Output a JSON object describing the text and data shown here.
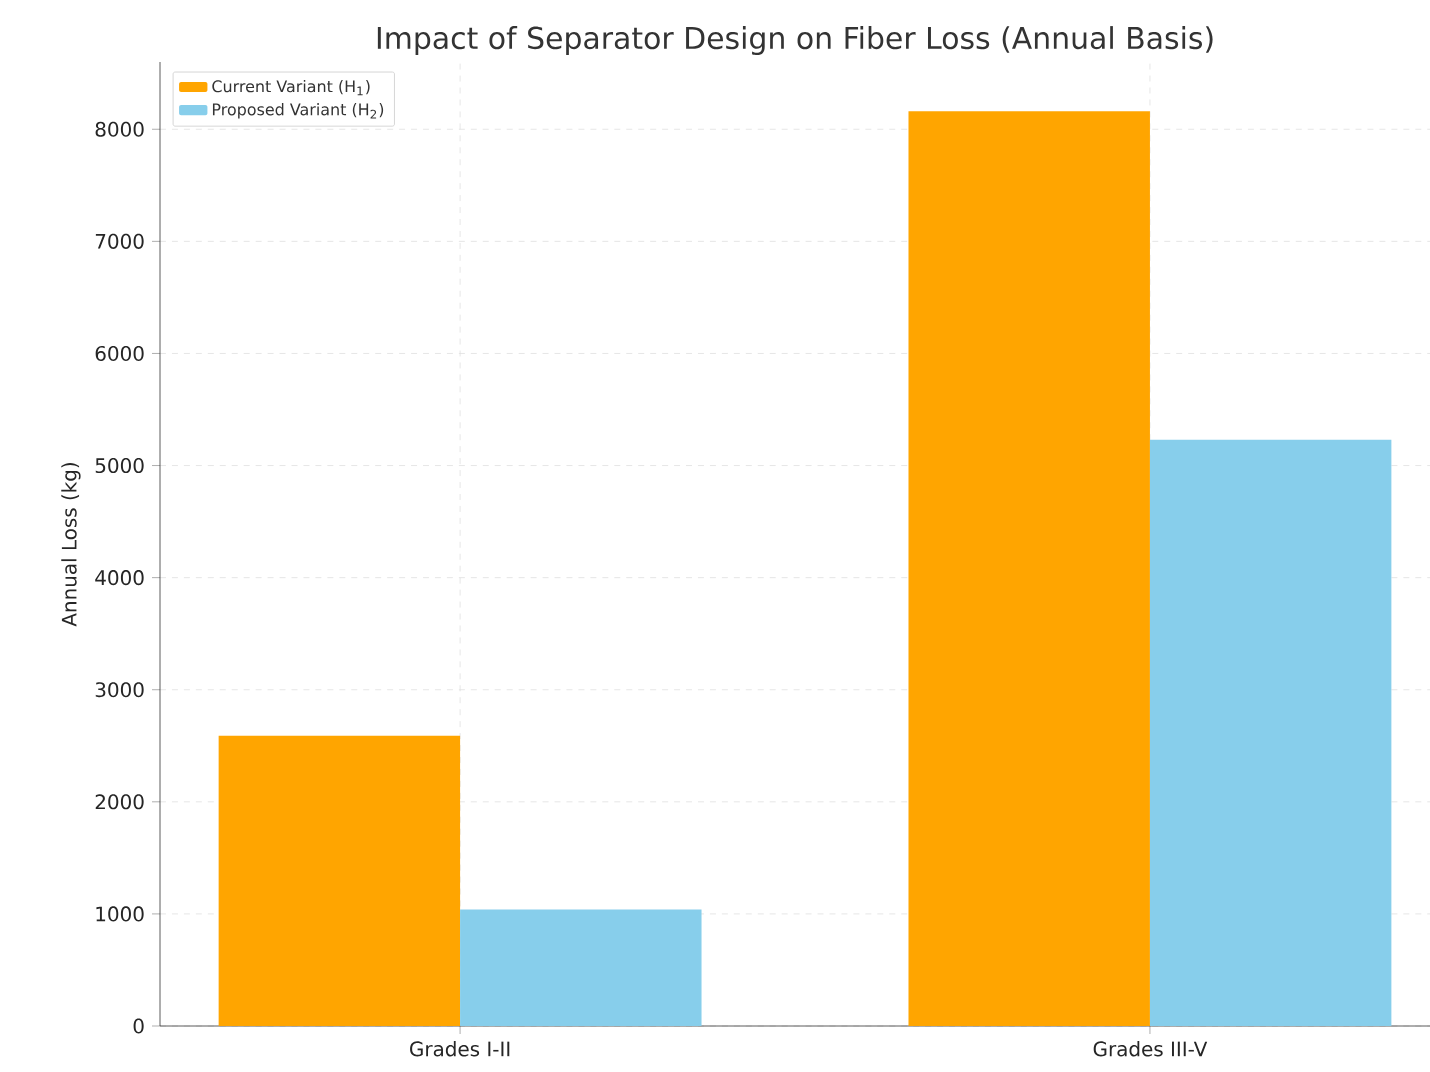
{
  "chart_data": {
    "type": "bar",
    "title": "Impact of Separator Design on Fiber Loss (Annual Basis)",
    "ylabel": "Annual Loss (kg)",
    "categories": [
      "Grades I-II",
      "Grades III-V"
    ],
    "series": [
      {
        "name": "Current Variant (H$_{1}$)",
        "color": "#ffa500",
        "values": [
          2590,
          8160
        ]
      },
      {
        "name": "Proposed Variant (H$_{2}$)",
        "color": "#87ceeb",
        "values": [
          1040,
          5230
        ]
      }
    ],
    "ylim": [
      0,
      8600
    ],
    "yticks": [
      0,
      1000,
      2000,
      3000,
      4000,
      5000,
      6000,
      7000,
      8000
    ],
    "grid": true,
    "legend": "top left"
  }
}
